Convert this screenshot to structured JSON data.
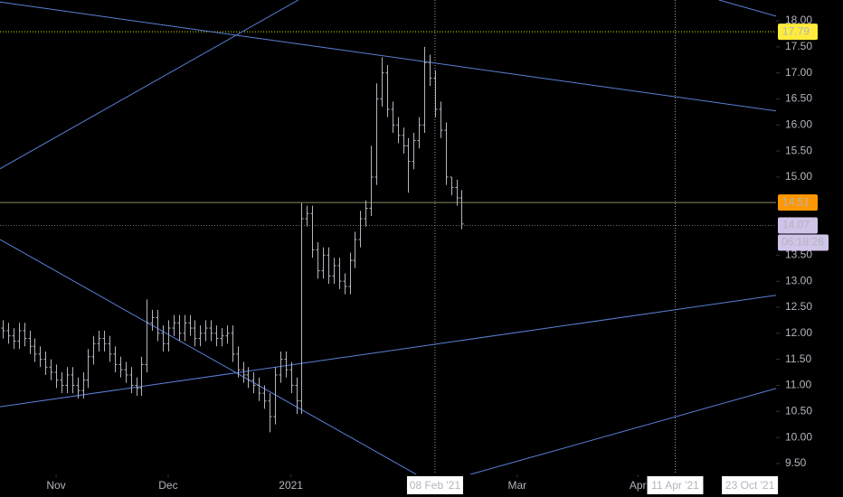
{
  "chart_data": {
    "type": "ohlc",
    "color": "#b2b5be",
    "open": [
      12.1,
      12.05,
      11.95,
      11.85,
      12.05,
      11.9,
      11.75,
      11.6,
      11.5,
      11.35,
      11.25,
      11.1,
      11.0,
      11.2,
      11.0,
      10.9,
      11.1,
      11.55,
      11.8,
      11.9,
      11.8,
      11.6,
      11.4,
      11.3,
      11.2,
      11.0,
      10.95,
      11.4,
      12.2,
      12.3,
      12.0,
      11.8,
      12.1,
      12.2,
      12.0,
      12.2,
      12.1,
      11.9,
      12.0,
      12.1,
      12.0,
      11.9,
      11.95,
      12.0,
      11.6,
      11.3,
      11.2,
      11.1,
      11.0,
      10.85,
      10.7,
      10.4,
      11.2,
      11.5,
      11.3,
      11.0,
      10.7,
      14.2,
      14.3,
      13.6,
      13.2,
      13.5,
      13.1,
      13.3,
      13.0,
      12.9,
      13.4,
      13.8,
      14.2,
      14.4,
      15.0,
      16.5,
      17.0,
      16.3,
      16.0,
      15.8,
      15.6,
      15.3,
      15.7,
      16.0,
      17.2,
      16.9,
      16.3,
      15.9,
      15.0,
      14.8,
      14.6
    ],
    "high": [
      12.25,
      12.2,
      12.1,
      12.2,
      12.2,
      12.05,
      11.9,
      11.75,
      11.65,
      11.5,
      11.4,
      11.25,
      11.35,
      11.35,
      11.15,
      11.25,
      11.7,
      11.95,
      12.05,
      12.05,
      11.95,
      11.75,
      11.55,
      11.45,
      11.35,
      11.15,
      11.55,
      12.65,
      12.45,
      12.45,
      12.15,
      12.25,
      12.35,
      12.35,
      12.35,
      12.35,
      12.25,
      12.15,
      12.25,
      12.25,
      12.15,
      12.1,
      12.15,
      12.15,
      11.75,
      11.45,
      11.35,
      11.25,
      11.15,
      11.0,
      10.85,
      11.35,
      11.65,
      11.65,
      11.45,
      11.15,
      14.5,
      14.45,
      14.45,
      13.75,
      13.65,
      13.65,
      13.45,
      13.45,
      13.15,
      13.55,
      13.95,
      14.35,
      14.55,
      15.6,
      16.8,
      17.3,
      17.15,
      16.45,
      16.15,
      15.95,
      15.75,
      15.85,
      16.15,
      17.5,
      17.35,
      17.05,
      16.45,
      16.05,
      15.0,
      14.95,
      14.75
    ],
    "low": [
      11.9,
      11.8,
      11.7,
      11.7,
      11.75,
      11.6,
      11.45,
      11.35,
      11.2,
      11.1,
      10.95,
      10.85,
      10.85,
      10.85,
      10.75,
      10.75,
      10.95,
      11.4,
      11.65,
      11.65,
      11.45,
      11.25,
      11.15,
      11.05,
      10.85,
      10.8,
      10.8,
      11.25,
      12.05,
      11.85,
      11.65,
      11.65,
      11.95,
      11.85,
      11.85,
      11.95,
      11.75,
      11.75,
      11.85,
      11.85,
      11.75,
      11.75,
      11.8,
      11.45,
      11.15,
      11.05,
      10.95,
      10.85,
      10.7,
      10.55,
      10.1,
      10.25,
      11.05,
      11.15,
      10.85,
      10.45,
      10.45,
      14.05,
      13.45,
      13.05,
      13.05,
      12.95,
      12.95,
      12.85,
      12.75,
      12.75,
      13.25,
      13.65,
      14.05,
      14.25,
      14.85,
      16.35,
      16.15,
      15.85,
      15.65,
      15.45,
      14.7,
      15.15,
      15.55,
      15.85,
      16.75,
      16.15,
      15.75,
      14.85,
      14.65,
      14.45,
      14.0
    ],
    "close": [
      12.05,
      11.95,
      11.85,
      12.05,
      11.9,
      11.75,
      11.6,
      11.5,
      11.35,
      11.25,
      11.1,
      11.0,
      11.2,
      11.0,
      10.9,
      11.1,
      11.55,
      11.8,
      11.9,
      11.8,
      11.6,
      11.4,
      11.3,
      11.2,
      11.0,
      10.95,
      11.4,
      12.2,
      12.3,
      12.0,
      11.8,
      12.1,
      12.2,
      12.0,
      12.2,
      12.1,
      11.9,
      12.0,
      12.1,
      12.0,
      11.9,
      11.95,
      12.0,
      11.6,
      11.3,
      11.2,
      11.1,
      11.0,
      10.85,
      10.7,
      10.4,
      11.2,
      11.5,
      11.3,
      11.0,
      10.7,
      14.2,
      14.3,
      13.6,
      13.2,
      13.5,
      13.1,
      13.3,
      13.0,
      12.9,
      13.4,
      13.8,
      14.2,
      14.4,
      15.0,
      16.5,
      17.0,
      16.3,
      16.0,
      15.8,
      15.6,
      15.3,
      15.7,
      16.0,
      17.2,
      16.9,
      16.3,
      15.9,
      15.0,
      14.8,
      14.6,
      14.1
    ],
    "xlim": [
      -0.51,
      144.9
    ],
    "ylim": [
      9.29,
      18.4
    ],
    "xticks": [
      {
        "value": 10,
        "label": "Nov"
      },
      {
        "value": 31,
        "label": "Dec"
      },
      {
        "value": 54,
        "label": "2021"
      },
      {
        "value": 96.4,
        "label": "Mar"
      },
      {
        "value": 119,
        "label": "Apr"
      }
    ],
    "yticks": [
      {
        "value": 9.5,
        "label": "9.50"
      },
      {
        "value": 10,
        "label": "10.00"
      },
      {
        "value": 10.5,
        "label": "10.50"
      },
      {
        "value": 11,
        "label": "11.00"
      },
      {
        "value": 11.5,
        "label": "11.50"
      },
      {
        "value": 12,
        "label": "12.00"
      },
      {
        "value": 12.5,
        "label": "12.50"
      },
      {
        "value": 13,
        "label": "13.00"
      },
      {
        "value": 13.5,
        "label": "13.50"
      },
      {
        "value": 15,
        "label": "15.00"
      },
      {
        "value": 15.5,
        "label": "15.50"
      },
      {
        "value": 16,
        "label": "16.00"
      },
      {
        "value": 16.5,
        "label": "16.50"
      },
      {
        "value": 17,
        "label": "17.00"
      },
      {
        "value": 17.5,
        "label": "17.50"
      },
      {
        "value": 18,
        "label": "18.00"
      }
    ],
    "trendlines": [
      {
        "x": [
          -0.5,
          55.4
        ],
        "y": [
          15.16,
          18.4
        ],
        "color": "#5b7fd6"
      },
      {
        "x": [
          -0.5,
          144.9
        ],
        "y": [
          18.36,
          16.27
        ],
        "color": "#5b7fd6"
      },
      {
        "x": [
          -0.5,
          77.5
        ],
        "y": [
          13.8,
          9.29
        ],
        "color": "#5b7fd6"
      },
      {
        "x": [
          -0.5,
          144.9
        ],
        "y": [
          10.59,
          12.73
        ],
        "color": "#5b7fd6"
      },
      {
        "x": [
          87.6,
          144.9
        ],
        "y": [
          9.29,
          10.94
        ],
        "color": "#5b7fd6"
      },
      {
        "x": [
          134.2,
          144.9
        ],
        "y": [
          18.4,
          18.09
        ],
        "color": "#5b7fd6"
      }
    ],
    "price_lines": [
      {
        "value": 17.79,
        "color": "#e6e600",
        "label_bg": "#ffeb3b",
        "label_color": "#000000",
        "dash": true
      },
      {
        "value": 14.51,
        "color": "#8c8a66",
        "label_bg": "#ff9800",
        "label_color": "#000000",
        "dash": false
      },
      {
        "value": 14.07,
        "color": "#707070",
        "label_bg": "#d1c4e9",
        "label_color": "#131722",
        "dash": true
      }
    ],
    "countdown": "06:18:28",
    "date_markers": [
      {
        "value": 81,
        "label": "08 Feb '21",
        "line": true
      },
      {
        "value": 126,
        "label": "11 Apr '21",
        "line": true
      },
      {
        "value": 140,
        "label": "23 Oct '21",
        "line": false
      }
    ]
  }
}
